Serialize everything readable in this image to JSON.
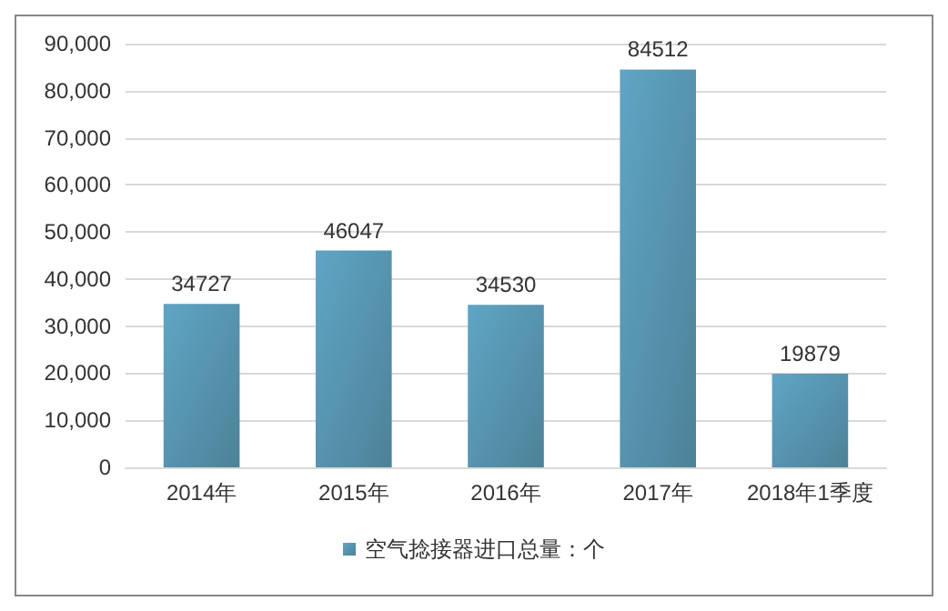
{
  "chart_data": {
    "type": "bar",
    "categories": [
      "2014年",
      "2015年",
      "2016年",
      "2017年",
      "2018年1季度"
    ],
    "series": [
      {
        "name": "空气捻接器进口总量：个",
        "color": "#5fa5c5",
        "values": [
          34727,
          46047,
          34530,
          84512,
          19879
        ]
      }
    ],
    "ylim": [
      0,
      90000
    ],
    "yticks": [
      0,
      {
        "value": 10000,
        "label": "10,000"
      },
      {
        "value": 20000,
        "label": "20,000"
      },
      {
        "value": 30000,
        "label": "30,000"
      },
      {
        "value": 40000,
        "label": "40,000"
      },
      {
        "value": 50000,
        "label": "50,000"
      },
      {
        "value": 60000,
        "label": "60,000"
      },
      {
        "value": 70000,
        "label": "70,000"
      },
      {
        "value": 80000,
        "label": "80,000"
      },
      {
        "value": 90000,
        "label": "90,000"
      }
    ],
    "grid": "y",
    "legend": "bottom",
    "data_labels": true
  }
}
